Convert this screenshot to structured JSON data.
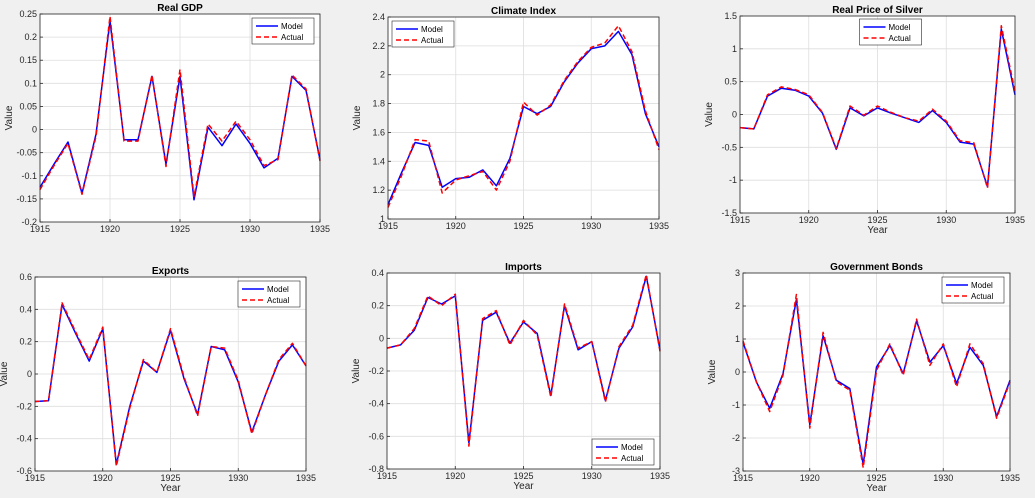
{
  "chart_data": [
    {
      "type": "line",
      "title": "Real GDP",
      "xlabel": "",
      "ylabel": "Value",
      "xlim": [
        1915,
        1935
      ],
      "ylim": [
        -0.2,
        0.25
      ],
      "xticks": [
        1915,
        1920,
        1925,
        1930,
        1935
      ],
      "yticks": [
        -0.2,
        -0.15,
        -0.1,
        -0.05,
        0,
        0.05,
        0.1,
        0.15,
        0.2,
        0.25
      ],
      "ytick_labels": [
        "-0.2",
        "-0.15",
        "-0.1",
        "-0.05",
        "0",
        "0.05",
        "0.1",
        "0.15",
        "0.2",
        "0.25"
      ],
      "grid": true,
      "legend": "top-right",
      "x": [
        1915,
        1916,
        1917,
        1918,
        1919,
        1920,
        1921,
        1922,
        1923,
        1924,
        1925,
        1926,
        1927,
        1928,
        1929,
        1930,
        1931,
        1932,
        1933,
        1934,
        1935
      ],
      "series": [
        {
          "name": "Model",
          "color": "#0000ff",
          "style": "solid",
          "values": [
            -0.125,
            -0.075,
            -0.027,
            -0.138,
            -0.01,
            0.235,
            -0.022,
            -0.022,
            0.115,
            -0.075,
            0.115,
            -0.152,
            0.005,
            -0.035,
            0.012,
            -0.03,
            -0.083,
            -0.062,
            0.115,
            0.085,
            -0.065
          ]
        },
        {
          "name": "Actual",
          "color": "#ff0000",
          "style": "dashed",
          "values": [
            -0.13,
            -0.078,
            -0.03,
            -0.14,
            -0.015,
            0.245,
            -0.025,
            -0.025,
            0.118,
            -0.08,
            0.13,
            -0.145,
            0.012,
            -0.025,
            0.018,
            -0.022,
            -0.078,
            -0.065,
            0.118,
            0.088,
            -0.068
          ]
        }
      ]
    },
    {
      "type": "line",
      "title": "Climate Index",
      "xlabel": "",
      "ylabel": "Value",
      "xlim": [
        1915,
        1935
      ],
      "ylim": [
        1,
        2.4
      ],
      "xticks": [
        1915,
        1920,
        1925,
        1930,
        1935
      ],
      "yticks": [
        1,
        1.2,
        1.4,
        1.6,
        1.8,
        2,
        2.2,
        2.4
      ],
      "ytick_labels": [
        "1",
        "1.2",
        "1.4",
        "1.6",
        "1.8",
        "2",
        "2.2",
        "2.4"
      ],
      "grid": true,
      "legend": "top-left",
      "x": [
        1915,
        1916,
        1917,
        1918,
        1919,
        1920,
        1921,
        1922,
        1923,
        1924,
        1925,
        1926,
        1927,
        1928,
        1929,
        1930,
        1931,
        1932,
        1933,
        1934,
        1935
      ],
      "series": [
        {
          "name": "Model",
          "color": "#0000ff",
          "style": "solid",
          "values": [
            1.1,
            1.32,
            1.53,
            1.51,
            1.22,
            1.28,
            1.29,
            1.34,
            1.23,
            1.42,
            1.78,
            1.73,
            1.78,
            1.95,
            2.08,
            2.18,
            2.2,
            2.3,
            2.14,
            1.73,
            1.5
          ]
        },
        {
          "name": "Actual",
          "color": "#ff0000",
          "style": "dashed",
          "values": [
            1.08,
            1.3,
            1.55,
            1.54,
            1.18,
            1.27,
            1.3,
            1.33,
            1.2,
            1.4,
            1.81,
            1.72,
            1.79,
            1.96,
            2.09,
            2.19,
            2.22,
            2.34,
            2.16,
            1.75,
            1.48
          ]
        }
      ]
    },
    {
      "type": "line",
      "title": "Real Price of Silver",
      "xlabel": "Year",
      "ylabel": "Value",
      "xlim": [
        1915,
        1935
      ],
      "ylim": [
        -1.5,
        1.5
      ],
      "xticks": [
        1915,
        1920,
        1925,
        1930,
        1935
      ],
      "yticks": [
        -1.5,
        -1,
        -0.5,
        0,
        0.5,
        1,
        1.5
      ],
      "ytick_labels": [
        "-1.5",
        "-1",
        "-0.5",
        "0",
        "0.5",
        "1",
        "1.5"
      ],
      "grid": true,
      "legend": "top-center",
      "x": [
        1915,
        1916,
        1917,
        1918,
        1919,
        1920,
        1921,
        1922,
        1923,
        1924,
        1925,
        1926,
        1927,
        1928,
        1929,
        1930,
        1931,
        1932,
        1933,
        1934,
        1935
      ],
      "series": [
        {
          "name": "Model",
          "color": "#0000ff",
          "style": "solid",
          "values": [
            -0.2,
            -0.22,
            0.28,
            0.4,
            0.37,
            0.28,
            0.02,
            -0.53,
            0.1,
            -0.02,
            0.1,
            0.02,
            -0.05,
            -0.12,
            0.06,
            -0.12,
            -0.42,
            -0.45,
            -1.1,
            1.3,
            0.3
          ]
        },
        {
          "name": "Actual",
          "color": "#ff0000",
          "style": "dashed",
          "values": [
            -0.2,
            -0.22,
            0.3,
            0.42,
            0.38,
            0.3,
            0.03,
            -0.52,
            0.13,
            -0.01,
            0.13,
            0.03,
            -0.05,
            -0.1,
            0.08,
            -0.1,
            -0.4,
            -0.43,
            -1.12,
            1.35,
            0.35
          ]
        }
      ]
    },
    {
      "type": "line",
      "title": "Exports",
      "xlabel": "Year",
      "ylabel": "Value",
      "xlim": [
        1915,
        1935
      ],
      "ylim": [
        -0.6,
        0.6
      ],
      "xticks": [
        1915,
        1920,
        1925,
        1930,
        1935
      ],
      "yticks": [
        -0.6,
        -0.4,
        -0.2,
        0,
        0.2,
        0.4,
        0.6
      ],
      "ytick_labels": [
        "-0.6",
        "-0.4",
        "-0.2",
        "0",
        "0.2",
        "0.4",
        "0.6"
      ],
      "grid": true,
      "legend": "top-right",
      "x": [
        1915,
        1916,
        1917,
        1918,
        1919,
        1920,
        1921,
        1922,
        1923,
        1924,
        1925,
        1926,
        1927,
        1928,
        1929,
        1930,
        1931,
        1932,
        1933,
        1934,
        1935
      ],
      "series": [
        {
          "name": "Model",
          "color": "#0000ff",
          "style": "solid",
          "values": [
            -0.17,
            -0.165,
            0.43,
            0.25,
            0.08,
            0.28,
            -0.56,
            -0.2,
            0.08,
            0.01,
            0.27,
            -0.03,
            -0.25,
            0.17,
            0.15,
            -0.05,
            -0.36,
            -0.13,
            0.08,
            0.18,
            0.05
          ]
        },
        {
          "name": "Actual",
          "color": "#ff0000",
          "style": "dashed",
          "values": [
            -0.17,
            -0.165,
            0.44,
            0.26,
            0.09,
            0.29,
            -0.57,
            -0.21,
            0.09,
            0.01,
            0.28,
            -0.02,
            -0.26,
            0.17,
            0.16,
            -0.04,
            -0.37,
            -0.13,
            0.09,
            0.19,
            0.05
          ]
        }
      ]
    },
    {
      "type": "line",
      "title": "Imports",
      "xlabel": "Year",
      "ylabel": "Value",
      "xlim": [
        1915,
        1935
      ],
      "ylim": [
        -0.8,
        0.4
      ],
      "xticks": [
        1915,
        1920,
        1925,
        1930,
        1935
      ],
      "yticks": [
        -0.8,
        -0.6,
        -0.4,
        -0.2,
        0,
        0.2,
        0.4
      ],
      "ytick_labels": [
        "-0.8",
        "-0.6",
        "-0.4",
        "-0.2",
        "0",
        "0.2",
        "0.4"
      ],
      "grid": true,
      "legend": "bottom-right",
      "x": [
        1915,
        1916,
        1917,
        1918,
        1919,
        1920,
        1921,
        1922,
        1923,
        1924,
        1925,
        1926,
        1927,
        1928,
        1929,
        1930,
        1931,
        1932,
        1933,
        1934,
        1935
      ],
      "series": [
        {
          "name": "Model",
          "color": "#0000ff",
          "style": "solid",
          "values": [
            -0.06,
            -0.04,
            0.05,
            0.25,
            0.21,
            0.26,
            -0.64,
            0.11,
            0.16,
            -0.03,
            0.1,
            0.03,
            -0.35,
            0.2,
            -0.07,
            -0.02,
            -0.38,
            -0.06,
            0.07,
            0.38,
            -0.07
          ]
        },
        {
          "name": "Actual",
          "color": "#ff0000",
          "style": "dashed",
          "values": [
            -0.06,
            -0.04,
            0.06,
            0.26,
            0.2,
            0.27,
            -0.66,
            0.12,
            0.17,
            -0.04,
            0.11,
            0.02,
            -0.36,
            0.21,
            -0.06,
            -0.02,
            -0.39,
            -0.05,
            0.08,
            0.39,
            -0.08
          ]
        }
      ]
    },
    {
      "type": "line",
      "title": "Government Bonds",
      "xlabel": "Year",
      "ylabel": "Value",
      "xlim": [
        1915,
        1935
      ],
      "ylim": [
        -3,
        3
      ],
      "xticks": [
        1915,
        1920,
        1925,
        1930,
        1935
      ],
      "yticks": [
        -3,
        -2,
        -1,
        0,
        1,
        2,
        3
      ],
      "ytick_labels": [
        "-3",
        "-2",
        "-1",
        "0",
        "1",
        "2",
        "3"
      ],
      "grid": true,
      "legend": "top-right",
      "x": [
        1915,
        1916,
        1917,
        1918,
        1919,
        1920,
        1921,
        1922,
        1923,
        1924,
        1925,
        1926,
        1927,
        1928,
        1929,
        1930,
        1931,
        1932,
        1933,
        1934,
        1935
      ],
      "series": [
        {
          "name": "Model",
          "color": "#0000ff",
          "style": "solid",
          "values": [
            0.9,
            -0.3,
            -1.1,
            -0.05,
            2.2,
            -1.6,
            1.1,
            -0.25,
            -0.5,
            -2.8,
            0.15,
            0.8,
            -0.05,
            1.55,
            0.3,
            0.8,
            -0.35,
            0.75,
            0.2,
            -1.35,
            -0.25
          ]
        },
        {
          "name": "Actual",
          "color": "#ff0000",
          "style": "dashed",
          "values": [
            0.95,
            -0.3,
            -1.2,
            -0.1,
            2.35,
            -1.7,
            1.2,
            -0.3,
            -0.55,
            -2.9,
            0.05,
            0.85,
            -0.1,
            1.6,
            0.2,
            0.85,
            -0.45,
            0.85,
            0.25,
            -1.4,
            -0.3
          ]
        }
      ]
    }
  ]
}
